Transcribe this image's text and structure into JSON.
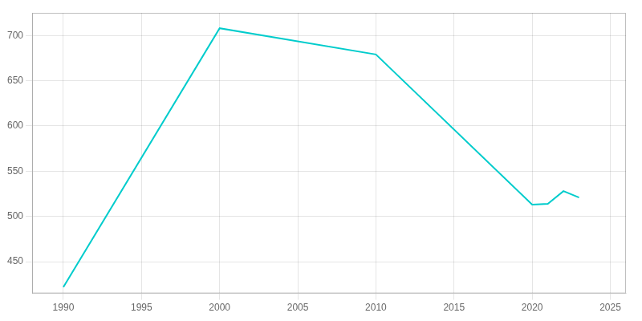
{
  "chart_data": {
    "type": "line",
    "x": [
      1990,
      2000,
      2010,
      2020,
      2021,
      2022,
      2023
    ],
    "values": [
      422,
      708,
      679,
      513,
      514,
      528,
      521
    ],
    "color": "#00CCCC",
    "xlim": [
      1988,
      2026
    ],
    "ylim": [
      415,
      725
    ],
    "xticks": [
      1990,
      1995,
      2000,
      2005,
      2010,
      2015,
      2020,
      2025
    ],
    "yticks": [
      450,
      500,
      550,
      600,
      650,
      700
    ],
    "grid": true
  }
}
